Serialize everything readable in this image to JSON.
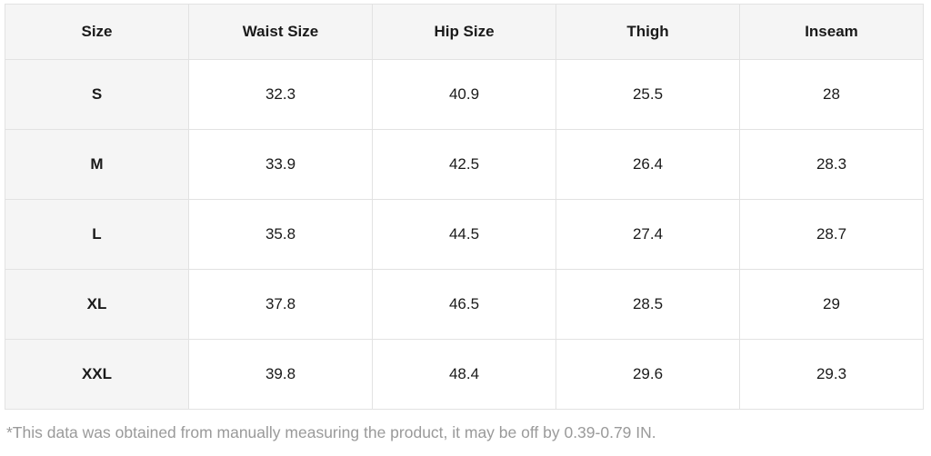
{
  "table": {
    "headers": [
      "Size",
      "Waist Size",
      "Hip Size",
      "Thigh",
      "Inseam"
    ],
    "rows": [
      {
        "size": "S",
        "values": [
          "32.3",
          "40.9",
          "25.5",
          "28"
        ]
      },
      {
        "size": "M",
        "values": [
          "33.9",
          "42.5",
          "26.4",
          "28.3"
        ]
      },
      {
        "size": "L",
        "values": [
          "35.8",
          "44.5",
          "27.4",
          "28.7"
        ]
      },
      {
        "size": "XL",
        "values": [
          "37.8",
          "46.5",
          "28.5",
          "29"
        ]
      },
      {
        "size": "XXL",
        "values": [
          "39.8",
          "48.4",
          "29.6",
          "29.3"
        ]
      }
    ]
  },
  "footnote": "*This data was obtained from manually measuring the product, it may be off by 0.39-0.79 IN.",
  "colors": {
    "header_bg": "#f5f5f5",
    "border": "#e2e2e2",
    "cell_bg": "#ffffff",
    "text": "#1a1a1a",
    "footnote_text": "#9a9a9a"
  }
}
